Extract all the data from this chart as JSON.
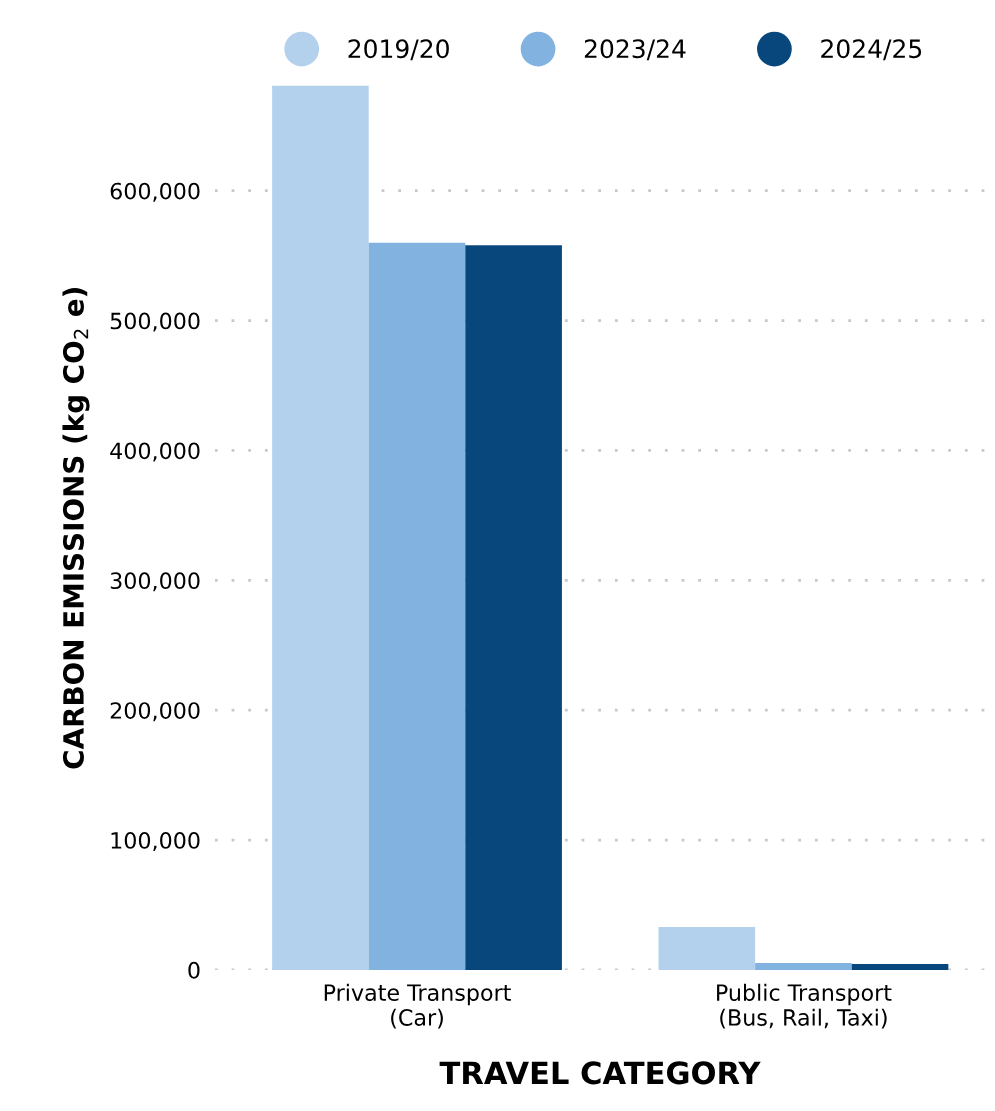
{
  "chart_data": {
    "type": "bar",
    "xlabel": "TRAVEL CATEGORY",
    "ylabel": "CARBON EMISSIONS (kg CO$_{2}$ e)",
    "categories": [
      "Private Transport\n(Car)",
      "Public Transport\n(Bus, Rail, Taxi)"
    ],
    "series": [
      {
        "name": "2019/20",
        "color": "#b3d1ec",
        "values": [
          681000,
          33000
        ]
      },
      {
        "name": "2023/24",
        "color": "#82b3e0",
        "values": [
          560000,
          5400
        ]
      },
      {
        "name": "2024/25",
        "color": "#08477c",
        "values": [
          558000,
          4600
        ]
      }
    ],
    "ylim": [
      0,
      681000
    ],
    "yticks": [
      {
        "value": 0,
        "label": "0"
      },
      {
        "value": 100000,
        "label": "100,000"
      },
      {
        "value": 200000,
        "label": "200,000"
      },
      {
        "value": 300000,
        "label": "300,000"
      },
      {
        "value": 400000,
        "label": "400,000"
      },
      {
        "value": 500000,
        "label": "500,000"
      },
      {
        "value": 600000,
        "label": "600,000"
      }
    ],
    "grid": "y",
    "legend": "top"
  }
}
